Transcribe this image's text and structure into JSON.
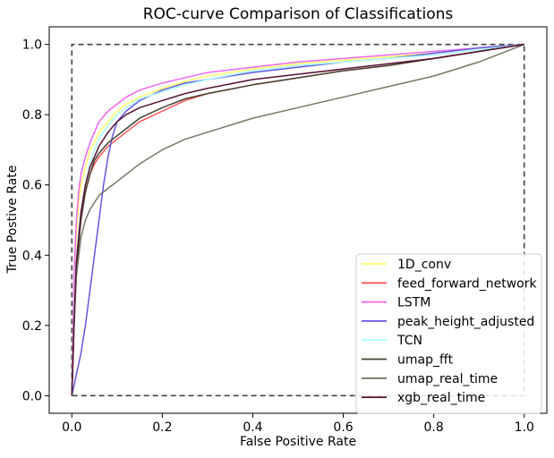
{
  "chart_data": {
    "type": "line",
    "title": "ROC-curve Comparison of Classifications",
    "xlabel": "False Positive Rate",
    "ylabel": "True Postive Rate",
    "xlim": [
      -0.05,
      1.05
    ],
    "ylim": [
      -0.05,
      1.05
    ],
    "xticks": [
      "0.0",
      "0.2",
      "0.4",
      "0.6",
      "0.8",
      "1.0"
    ],
    "yticks": [
      "0.0",
      "0.2",
      "0.4",
      "0.6",
      "0.8",
      "1.0"
    ],
    "grid": false,
    "legend_position": "lower-right",
    "reference_box": {
      "style": "dashed",
      "color": "#444444",
      "x": [
        0,
        0,
        1,
        1,
        0
      ],
      "y": [
        0,
        1,
        1,
        0,
        0
      ]
    },
    "series": [
      {
        "name": "1D_conv",
        "color": "#ffff66",
        "x": [
          0,
          0.005,
          0.01,
          0.015,
          0.02,
          0.03,
          0.04,
          0.05,
          0.06,
          0.08,
          0.1,
          0.12,
          0.15,
          0.2,
          0.25,
          0.3,
          0.4,
          0.5,
          0.6,
          0.7,
          0.8,
          0.9,
          1.0
        ],
        "y": [
          0,
          0.3,
          0.45,
          0.55,
          0.6,
          0.65,
          0.7,
          0.72,
          0.75,
          0.78,
          0.81,
          0.83,
          0.85,
          0.875,
          0.895,
          0.91,
          0.93,
          0.945,
          0.955,
          0.965,
          0.975,
          0.99,
          1.0
        ]
      },
      {
        "name": "feed_forward_network",
        "color": "#ff5555",
        "x": [
          0,
          0.005,
          0.01,
          0.02,
          0.03,
          0.04,
          0.05,
          0.06,
          0.08,
          0.1,
          0.12,
          0.15,
          0.2,
          0.25,
          0.3,
          0.4,
          0.5,
          0.6,
          0.7,
          0.8,
          0.9,
          1.0
        ],
        "y": [
          0,
          0.2,
          0.35,
          0.5,
          0.58,
          0.63,
          0.66,
          0.68,
          0.71,
          0.73,
          0.75,
          0.78,
          0.81,
          0.84,
          0.86,
          0.885,
          0.905,
          0.925,
          0.94,
          0.96,
          0.98,
          1.0
        ]
      },
      {
        "name": "LSTM",
        "color": "#ee66ee",
        "x": [
          0,
          0.005,
          0.01,
          0.015,
          0.02,
          0.03,
          0.04,
          0.05,
          0.06,
          0.08,
          0.1,
          0.12,
          0.15,
          0.2,
          0.25,
          0.3,
          0.4,
          0.5,
          0.6,
          0.7,
          0.8,
          0.9,
          1.0
        ],
        "y": [
          0,
          0.35,
          0.5,
          0.58,
          0.63,
          0.68,
          0.72,
          0.75,
          0.78,
          0.81,
          0.83,
          0.85,
          0.87,
          0.89,
          0.905,
          0.92,
          0.935,
          0.95,
          0.96,
          0.97,
          0.98,
          0.99,
          1.0
        ]
      },
      {
        "name": "peak_height_adjusted",
        "color": "#6655dd",
        "x": [
          0,
          0.01,
          0.02,
          0.03,
          0.04,
          0.05,
          0.06,
          0.07,
          0.08,
          0.09,
          0.1,
          0.12,
          0.15,
          0.2,
          0.25,
          0.3,
          0.4,
          0.5,
          0.6,
          0.7,
          0.8,
          0.9,
          1.0
        ],
        "y": [
          0,
          0.06,
          0.12,
          0.2,
          0.3,
          0.4,
          0.5,
          0.6,
          0.68,
          0.74,
          0.78,
          0.81,
          0.84,
          0.87,
          0.89,
          0.9,
          0.92,
          0.935,
          0.95,
          0.96,
          0.975,
          0.99,
          1.0
        ]
      },
      {
        "name": "TCN",
        "color": "#aaffff",
        "x": [
          0,
          0.005,
          0.01,
          0.02,
          0.03,
          0.04,
          0.05,
          0.06,
          0.08,
          0.1,
          0.12,
          0.15,
          0.2,
          0.25,
          0.3,
          0.4,
          0.5,
          0.6,
          0.7,
          0.8,
          0.9,
          1.0
        ],
        "y": [
          0,
          0.25,
          0.4,
          0.52,
          0.6,
          0.66,
          0.7,
          0.73,
          0.77,
          0.8,
          0.82,
          0.845,
          0.865,
          0.885,
          0.9,
          0.925,
          0.94,
          0.95,
          0.96,
          0.97,
          0.985,
          1.0
        ]
      },
      {
        "name": "umap_fft",
        "color": "#444433",
        "x": [
          0,
          0.005,
          0.01,
          0.02,
          0.03,
          0.04,
          0.05,
          0.06,
          0.08,
          0.1,
          0.12,
          0.15,
          0.2,
          0.25,
          0.3,
          0.4,
          0.5,
          0.6,
          0.7,
          0.8,
          0.9,
          1.0
        ],
        "y": [
          0,
          0.2,
          0.36,
          0.5,
          0.58,
          0.63,
          0.67,
          0.69,
          0.72,
          0.74,
          0.76,
          0.79,
          0.82,
          0.845,
          0.86,
          0.885,
          0.905,
          0.925,
          0.94,
          0.96,
          0.98,
          1.0
        ]
      },
      {
        "name": "umap_real_time",
        "color": "#777766",
        "x": [
          0,
          0.005,
          0.01,
          0.02,
          0.03,
          0.04,
          0.05,
          0.06,
          0.08,
          0.1,
          0.12,
          0.15,
          0.2,
          0.25,
          0.3,
          0.4,
          0.5,
          0.6,
          0.7,
          0.8,
          0.85,
          0.9,
          1.0
        ],
        "y": [
          0,
          0.2,
          0.34,
          0.45,
          0.5,
          0.53,
          0.55,
          0.57,
          0.59,
          0.61,
          0.63,
          0.66,
          0.7,
          0.73,
          0.75,
          0.79,
          0.82,
          0.85,
          0.88,
          0.91,
          0.93,
          0.95,
          1.0
        ]
      },
      {
        "name": "xgb_real_time",
        "color": "#551133",
        "x": [
          0,
          0.005,
          0.01,
          0.02,
          0.03,
          0.04,
          0.05,
          0.06,
          0.08,
          0.1,
          0.12,
          0.15,
          0.2,
          0.25,
          0.3,
          0.4,
          0.5,
          0.6,
          0.7,
          0.8,
          0.9,
          1.0
        ],
        "y": [
          0,
          0.22,
          0.38,
          0.52,
          0.6,
          0.65,
          0.68,
          0.71,
          0.75,
          0.78,
          0.8,
          0.82,
          0.84,
          0.86,
          0.875,
          0.9,
          0.915,
          0.93,
          0.945,
          0.96,
          0.98,
          1.0
        ]
      }
    ]
  }
}
